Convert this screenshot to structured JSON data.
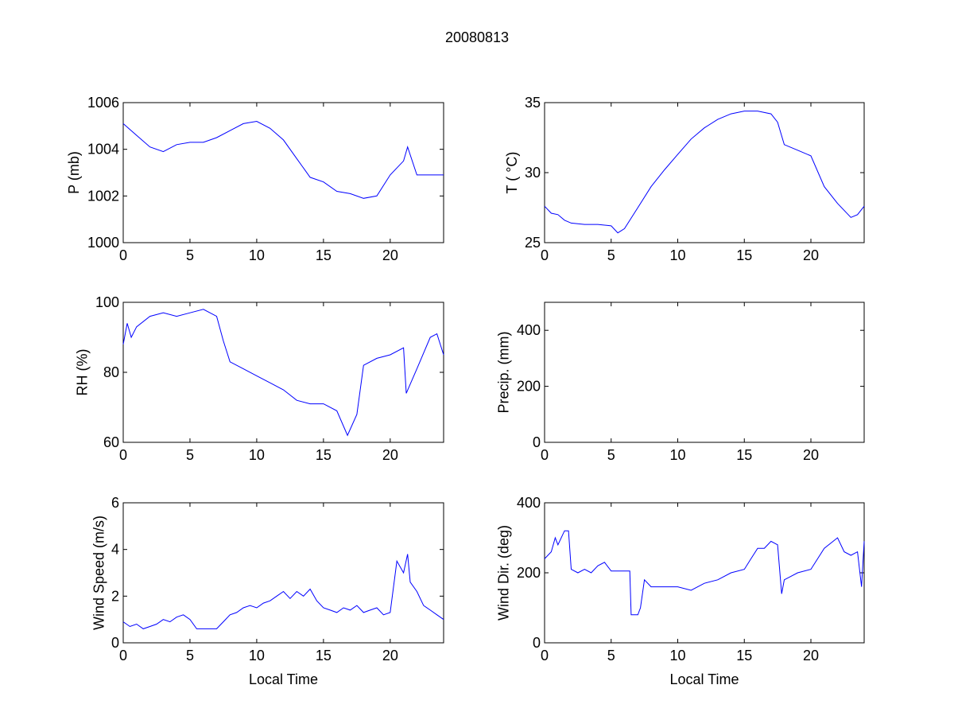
{
  "figure_title": "20080813",
  "line_color": "#0000ff",
  "chart_data": [
    {
      "type": "line",
      "title": "",
      "xlabel": "",
      "ylabel": "P (mb)",
      "xlim": [
        0,
        24
      ],
      "ylim": [
        1000,
        1006
      ],
      "xticks": [
        "0",
        "5",
        "10",
        "15",
        "20"
      ],
      "yticks": [
        "1000",
        "1002",
        "1004",
        "1006"
      ],
      "x": [
        0,
        1,
        2,
        3,
        4,
        5,
        6,
        7,
        8,
        9,
        10,
        11,
        12,
        13,
        14,
        15,
        16,
        17,
        18,
        19,
        20,
        21,
        21.3,
        22,
        23,
        24
      ],
      "y": [
        1005.1,
        1004.6,
        1004.1,
        1003.9,
        1004.2,
        1004.3,
        1004.3,
        1004.5,
        1004.8,
        1005.1,
        1005.2,
        1004.9,
        1004.4,
        1003.6,
        1002.8,
        1002.6,
        1002.2,
        1002.1,
        1001.9,
        1002.0,
        1002.9,
        1003.5,
        1004.1,
        1002.9,
        1002.9,
        1002.9
      ]
    },
    {
      "type": "line",
      "title": "",
      "xlabel": "",
      "ylabel": "T ( °C)",
      "xlim": [
        0,
        24
      ],
      "ylim": [
        25,
        35
      ],
      "xticks": [
        "0",
        "5",
        "10",
        "15",
        "20"
      ],
      "yticks": [
        "25",
        "30",
        "35"
      ],
      "x": [
        0,
        0.5,
        1,
        1.5,
        2,
        3,
        4,
        5,
        5.5,
        6,
        7,
        8,
        9,
        10,
        11,
        12,
        13,
        14,
        15,
        16,
        17,
        17.5,
        18,
        19,
        20,
        21,
        22,
        23,
        23.5,
        24
      ],
      "y": [
        27.6,
        27.1,
        27.0,
        26.6,
        26.4,
        26.3,
        26.3,
        26.2,
        25.7,
        26.0,
        27.5,
        29.0,
        30.2,
        31.3,
        32.4,
        33.2,
        33.8,
        34.2,
        34.4,
        34.4,
        34.2,
        33.6,
        32.0,
        31.6,
        31.2,
        29.0,
        27.8,
        26.8,
        27.0,
        27.6
      ]
    },
    {
      "type": "line",
      "title": "",
      "xlabel": "",
      "ylabel": "RH (%)",
      "xlim": [
        0,
        24
      ],
      "ylim": [
        60,
        100
      ],
      "xticks": [
        "0",
        "5",
        "10",
        "15",
        "20"
      ],
      "yticks": [
        "60",
        "80",
        "100"
      ],
      "x": [
        0,
        0.3,
        0.6,
        1,
        2,
        3,
        4,
        5,
        6,
        7,
        7.5,
        8,
        9,
        10,
        11,
        12,
        13,
        14,
        15,
        16,
        16.8,
        17.5,
        18,
        19,
        20,
        21,
        21.2,
        22,
        23,
        23.5,
        24
      ],
      "y": [
        88,
        94,
        90,
        93,
        96,
        97,
        96,
        97,
        98,
        96,
        89,
        83,
        81,
        79,
        77,
        75,
        72,
        71,
        71,
        69,
        62,
        68,
        82,
        84,
        85,
        87,
        74,
        81,
        90,
        91,
        85
      ]
    },
    {
      "type": "line",
      "title": "",
      "xlabel": "",
      "ylabel": "Precip. (mm)",
      "xlim": [
        0,
        24
      ],
      "ylim": [
        0,
        500
      ],
      "xticks": [
        "0",
        "5",
        "10",
        "15",
        "20"
      ],
      "yticks": [
        "0",
        "200",
        "400"
      ],
      "x": [],
      "y": []
    },
    {
      "type": "line",
      "title": "",
      "xlabel": "Local Time",
      "ylabel": "Wind Speed (m/s)",
      "xlim": [
        0,
        24
      ],
      "ylim": [
        0,
        6
      ],
      "xticks": [
        "0",
        "5",
        "10",
        "15",
        "20"
      ],
      "yticks": [
        "0",
        "2",
        "4",
        "6"
      ],
      "x": [
        0,
        0.5,
        1,
        1.5,
        2,
        2.5,
        3,
        3.5,
        4,
        4.5,
        5,
        5.5,
        6,
        6.5,
        7,
        7.5,
        8,
        8.5,
        9,
        9.5,
        10,
        10.5,
        11,
        11.5,
        12,
        12.5,
        13,
        13.5,
        14,
        14.5,
        15,
        15.5,
        16,
        16.5,
        17,
        17.5,
        18,
        18.5,
        19,
        19.5,
        20,
        20.5,
        21,
        21.3,
        21.5,
        22,
        22.5,
        23,
        23.5,
        24
      ],
      "y": [
        0.9,
        0.7,
        0.8,
        0.6,
        0.7,
        0.8,
        1.0,
        0.9,
        1.1,
        1.2,
        1.0,
        0.6,
        0.6,
        0.6,
        0.6,
        0.9,
        1.2,
        1.3,
        1.5,
        1.6,
        1.5,
        1.7,
        1.8,
        2.0,
        2.2,
        1.9,
        2.2,
        2.0,
        2.3,
        1.8,
        1.5,
        1.4,
        1.3,
        1.5,
        1.4,
        1.6,
        1.3,
        1.4,
        1.5,
        1.2,
        1.3,
        3.5,
        3.0,
        3.8,
        2.6,
        2.2,
        1.6,
        1.4,
        1.2,
        1.0
      ]
    },
    {
      "type": "line",
      "title": "",
      "xlabel": "Local Time",
      "ylabel": "Wind Dir. (deg)",
      "xlim": [
        0,
        24
      ],
      "ylim": [
        0,
        400
      ],
      "xticks": [
        "0",
        "5",
        "10",
        "15",
        "20"
      ],
      "yticks": [
        "0",
        "200",
        "400"
      ],
      "x": [
        0,
        0.5,
        0.8,
        1,
        1.5,
        1.8,
        2,
        2.5,
        3,
        3.5,
        4,
        4.5,
        5,
        6,
        6.4,
        6.5,
        7,
        7.2,
        7.5,
        8,
        9,
        10,
        11,
        12,
        13,
        14,
        15,
        15.5,
        16,
        16.5,
        17,
        17.5,
        17.8,
        18,
        18.5,
        19,
        20,
        21,
        22,
        22.5,
        23,
        23.5,
        23.8,
        24
      ],
      "y": [
        240,
        260,
        300,
        280,
        320,
        320,
        210,
        200,
        210,
        200,
        220,
        230,
        205,
        205,
        205,
        80,
        80,
        100,
        180,
        160,
        160,
        160,
        150,
        170,
        180,
        200,
        210,
        240,
        270,
        270,
        290,
        280,
        140,
        180,
        190,
        200,
        210,
        270,
        300,
        260,
        250,
        260,
        160,
        290
      ]
    }
  ]
}
